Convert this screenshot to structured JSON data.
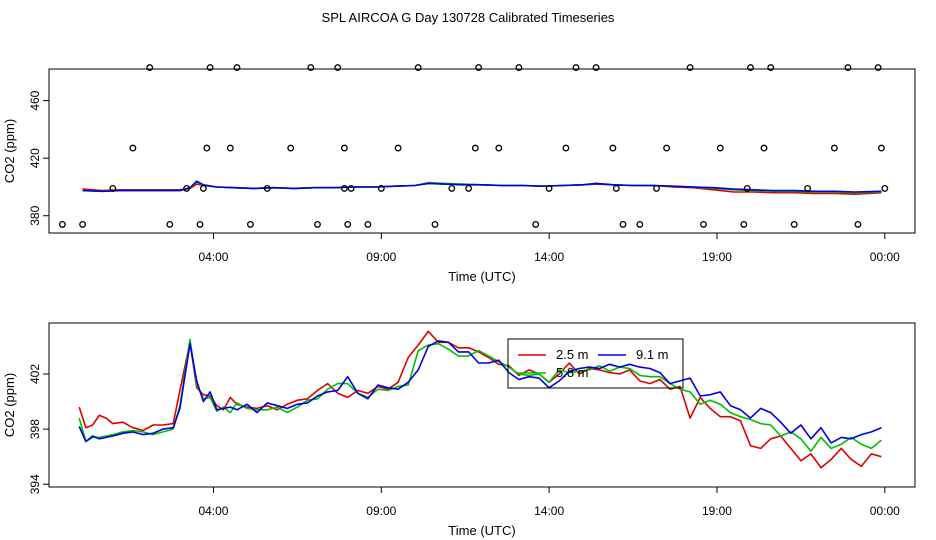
{
  "title": "SPL AIRCOA G  Day 130728  Calibrated Timeseries",
  "colors": {
    "2.5 m": "#e00000",
    "5.8 m": "#00c000",
    "9.1 m": "#0000e0"
  },
  "chart_data": [
    {
      "type": "line",
      "xlabel": "Time (UTC)",
      "ylabel": "CO2 (ppm)",
      "x_ticks": [
        "04:00",
        "09:00",
        "14:00",
        "19:00",
        "00:00"
      ],
      "x_tick_hours": [
        4,
        9,
        14,
        19,
        24
      ],
      "xlim": [
        -0.9,
        24.9
      ],
      "y_ticks": [
        380,
        420,
        460
      ],
      "ylim": [
        368,
        482
      ],
      "x": [
        0.1,
        0.7,
        1.2,
        1.8,
        2.4,
        3.0,
        3.3,
        3.5,
        3.7,
        4.1,
        4.6,
        5.2,
        5.8,
        6.4,
        7.0,
        7.6,
        8.2,
        8.8,
        9.4,
        10.0,
        10.4,
        10.9,
        11.4,
        12.0,
        12.6,
        13.2,
        13.8,
        14.4,
        15.0,
        15.4,
        15.9,
        16.5,
        17.1,
        17.7,
        18.3,
        18.9,
        19.5,
        20.1,
        20.7,
        21.3,
        21.9,
        22.5,
        23.1,
        23.9
      ],
      "series": [
        {
          "name": "2.5 m",
          "values": [
            398.5,
            397.5,
            398,
            398,
            398,
            398,
            399,
            402,
            401,
            400,
            399.5,
            399,
            399.5,
            399,
            399.5,
            399.5,
            400,
            400,
            400.5,
            401,
            402.5,
            402,
            402,
            401.5,
            401,
            401,
            400.5,
            401,
            401.5,
            402,
            401.5,
            401,
            401,
            400,
            399.5,
            398,
            396.5,
            396.5,
            396,
            396,
            395.5,
            395.5,
            395,
            396
          ]
        },
        {
          "name": "5.8 m",
          "values": [
            397.5,
            397,
            397.5,
            397.5,
            397.5,
            397.5,
            399.5,
            403.5,
            401,
            400,
            399.5,
            399,
            399.5,
            399,
            399.5,
            399.5,
            400,
            400,
            400.5,
            401,
            403,
            402.5,
            402,
            401.5,
            401,
            401,
            400.5,
            401,
            401.5,
            402.5,
            401.5,
            401,
            401,
            400.5,
            400,
            399,
            398,
            397.5,
            397,
            397,
            396.5,
            396.5,
            396,
            396.5
          ]
        },
        {
          "name": "9.1 m",
          "values": [
            397.5,
            397,
            397.5,
            397.5,
            397.5,
            397.5,
            399.5,
            404,
            401.5,
            400,
            399.5,
            399,
            399.5,
            399,
            399.5,
            399.5,
            400,
            400,
            400.5,
            401,
            402.5,
            402,
            401.5,
            401.5,
            401,
            401,
            400.5,
            401,
            401.5,
            402.5,
            401.5,
            401,
            401,
            400.5,
            400,
            399.5,
            398.5,
            398,
            397.5,
            397.5,
            397,
            397,
            396.5,
            397
          ]
        }
      ],
      "points_x": [
        -0.5,
        0.1,
        1.0,
        1.6,
        2.1,
        2.7,
        3.2,
        3.6,
        3.7,
        3.8,
        3.9,
        4.5,
        4.7,
        5.1,
        5.6,
        6.3,
        6.9,
        7.1,
        7.7,
        7.9,
        7.9,
        8.0,
        8.1,
        8.6,
        9.0,
        9.5,
        10.1,
        10.6,
        11.1,
        11.6,
        11.8,
        11.9,
        12.5,
        13.1,
        13.6,
        14.0,
        14.5,
        14.8,
        15.4,
        15.9,
        16.0,
        16.2,
        16.7,
        17.2,
        17.5,
        18.2,
        18.6,
        19.1,
        19.8,
        19.9,
        20.0,
        20.4,
        20.6,
        21.3,
        21.7,
        22.5,
        22.9,
        23.2,
        23.8,
        23.9,
        24.0
      ],
      "points_y": [
        374,
        374,
        399,
        427,
        483,
        374,
        399,
        374,
        399,
        427,
        483,
        427,
        483,
        374,
        399,
        427,
        483,
        374,
        483,
        427,
        399,
        374,
        399,
        374,
        399,
        427,
        483,
        374,
        399,
        399,
        427,
        483,
        427,
        483,
        374,
        399,
        427,
        483,
        483,
        427,
        399,
        374,
        374,
        399,
        427,
        483,
        374,
        427,
        374,
        399,
        483,
        427,
        483,
        374,
        399,
        427,
        483,
        374,
        483,
        427,
        399
      ]
    },
    {
      "type": "line",
      "xlabel": "Time (UTC)",
      "ylabel": "CO2 (ppm)",
      "x_ticks": [
        "04:00",
        "09:00",
        "14:00",
        "19:00",
        "00:00"
      ],
      "x_tick_hours": [
        4,
        9,
        14,
        19,
        24
      ],
      "xlim": [
        -0.9,
        24.9
      ],
      "y_ticks": [
        394,
        398,
        402
      ],
      "ylim": [
        393.8,
        405.7
      ],
      "legend": [
        "2.5 m",
        "5.8 m",
        "9.1 m"
      ],
      "x": [
        0.0,
        0.2,
        0.4,
        0.6,
        0.8,
        1.0,
        1.3,
        1.6,
        1.9,
        2.2,
        2.5,
        2.8,
        3.0,
        3.3,
        3.5,
        3.7,
        3.9,
        4.1,
        4.3,
        4.5,
        4.7,
        5.0,
        5.3,
        5.6,
        5.9,
        6.2,
        6.5,
        6.8,
        7.1,
        7.4,
        7.7,
        8.0,
        8.3,
        8.6,
        8.9,
        9.2,
        9.5,
        9.8,
        10.1,
        10.4,
        10.7,
        11.0,
        11.3,
        11.6,
        11.9,
        12.2,
        12.5,
        12.8,
        13.1,
        13.4,
        13.7,
        14.0,
        14.3,
        14.6,
        14.9,
        15.2,
        15.5,
        15.8,
        16.1,
        16.4,
        16.7,
        17.0,
        17.3,
        17.6,
        17.9,
        18.2,
        18.5,
        18.8,
        19.1,
        19.4,
        19.7,
        20.0,
        20.3,
        20.6,
        20.9,
        21.2,
        21.5,
        21.8,
        22.1,
        22.4,
        22.7,
        23.0,
        23.3,
        23.6,
        23.9
      ],
      "series": [
        {
          "name": "2.5 m",
          "values": [
            399.6,
            398.1,
            398.3,
            399.0,
            398.8,
            398.4,
            398.5,
            398.1,
            397.9,
            398.3,
            398.3,
            398.4,
            400.8,
            404.3,
            401.0,
            400.5,
            400.4,
            399.7,
            399.4,
            400.3,
            399.8,
            399.6,
            399.5,
            399.7,
            399.4,
            399.8,
            400.1,
            400.2,
            400.8,
            401.3,
            400.6,
            400.3,
            400.8,
            400.6,
            401.1,
            400.9,
            401.4,
            403.2,
            404.1,
            405.1,
            404.3,
            404.3,
            403.9,
            403.9,
            403.6,
            403.2,
            402.7,
            402.6,
            401.9,
            402.3,
            402.0,
            401.4,
            402.0,
            402.8,
            402.0,
            402.4,
            402.3,
            402.1,
            402.0,
            402.3,
            401.5,
            401.3,
            401.6,
            400.9,
            401.1,
            398.8,
            400.3,
            399.5,
            398.9,
            398.9,
            398.6,
            396.8,
            396.6,
            397.3,
            397.5,
            396.6,
            395.7,
            396.2,
            395.2,
            395.8,
            396.6,
            395.8,
            395.3,
            396.2,
            396.0
          ]
        },
        {
          "name": "5.8 m",
          "values": [
            398.8,
            397.1,
            397.4,
            397.4,
            397.5,
            397.6,
            397.8,
            397.9,
            397.8,
            397.6,
            397.8,
            398.0,
            399.7,
            404.5,
            401.2,
            400.2,
            400.3,
            399.3,
            399.6,
            399.2,
            399.9,
            399.5,
            399.4,
            399.4,
            399.6,
            399.2,
            399.6,
            400.1,
            400.2,
            400.9,
            401.3,
            401.3,
            400.6,
            400.3,
            400.9,
            400.8,
            401.1,
            401.2,
            403.7,
            404.1,
            404.2,
            403.8,
            403.3,
            403.3,
            403.7,
            403.3,
            402.9,
            402.5,
            402.0,
            401.9,
            402.0,
            401.4,
            402.3,
            402.1,
            402.2,
            402.3,
            402.6,
            402.2,
            402.5,
            402.4,
            401.9,
            401.8,
            401.8,
            401.3,
            400.9,
            400.7,
            399.8,
            400.1,
            399.8,
            399.2,
            398.9,
            398.7,
            398.4,
            398.3,
            397.5,
            397.8,
            397.3,
            396.4,
            397.4,
            396.6,
            396.9,
            397.4,
            396.9,
            396.6,
            397.2
          ]
        },
        {
          "name": "9.1 m",
          "values": [
            398.2,
            397.1,
            397.5,
            397.3,
            397.4,
            397.5,
            397.7,
            397.8,
            397.6,
            397.7,
            398.0,
            398.1,
            399.5,
            404.2,
            401.5,
            400.0,
            400.7,
            399.4,
            399.5,
            399.6,
            399.4,
            399.8,
            399.2,
            399.9,
            399.7,
            399.5,
            399.8,
            399.9,
            400.4,
            400.7,
            400.8,
            401.8,
            400.6,
            400.2,
            401.2,
            401.0,
            400.9,
            401.4,
            402.3,
            404.0,
            404.4,
            404.3,
            403.6,
            403.6,
            402.8,
            402.8,
            403.0,
            402.1,
            401.6,
            401.8,
            401.7,
            401.0,
            401.5,
            402.2,
            402.4,
            402.5,
            402.4,
            402.7,
            402.5,
            402.7,
            402.5,
            402.4,
            402.1,
            401.3,
            401.5,
            401.7,
            400.4,
            400.5,
            400.7,
            399.7,
            399.4,
            398.8,
            399.5,
            399.2,
            398.5,
            397.7,
            398.3,
            397.3,
            398.1,
            397.0,
            397.4,
            397.3,
            397.6,
            397.8,
            398.1
          ]
        }
      ]
    }
  ]
}
